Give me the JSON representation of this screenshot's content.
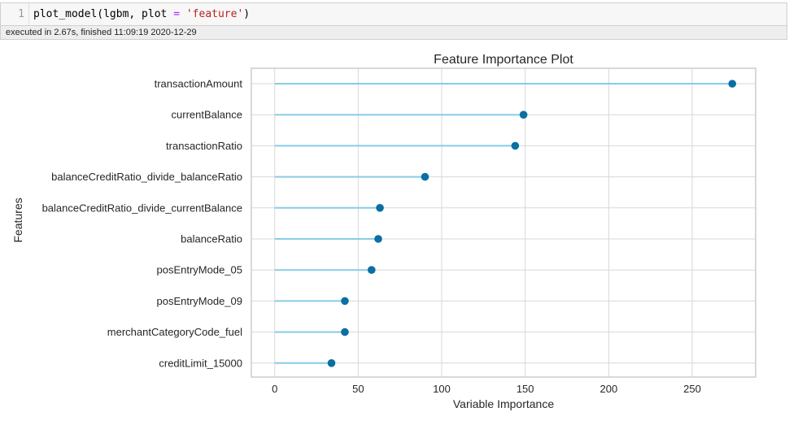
{
  "code_cell": {
    "line_number": "1",
    "code_func": "plot_model(lgbm, plot ",
    "code_op": "=",
    "code_str": "'feature'",
    "code_end": ")",
    "exec_status": "executed in 2.67s, finished 11:09:19 2020-12-29"
  },
  "colors": {
    "stem": "#89cbe8",
    "marker": "#0a6fa3",
    "grid": "#d8d8d8",
    "frame": "#cccccc"
  },
  "chart_data": {
    "type": "lollipop",
    "title": "Feature Importance Plot",
    "xlabel": "Variable Importance",
    "ylabel": "Features",
    "xlim": [
      -14,
      288
    ],
    "xticks": [
      0,
      50,
      100,
      150,
      200,
      250
    ],
    "grid": true,
    "categories": [
      "transactionAmount",
      "currentBalance",
      "transactionRatio",
      "balanceCreditRatio_divide_balanceRatio",
      "balanceCreditRatio_divide_currentBalance",
      "balanceRatio",
      "posEntryMode_05",
      "posEntryMode_09",
      "merchantCategoryCode_fuel",
      "creditLimit_15000"
    ],
    "values": [
      274,
      149,
      144,
      90,
      63,
      62,
      58,
      42,
      42,
      34
    ]
  }
}
